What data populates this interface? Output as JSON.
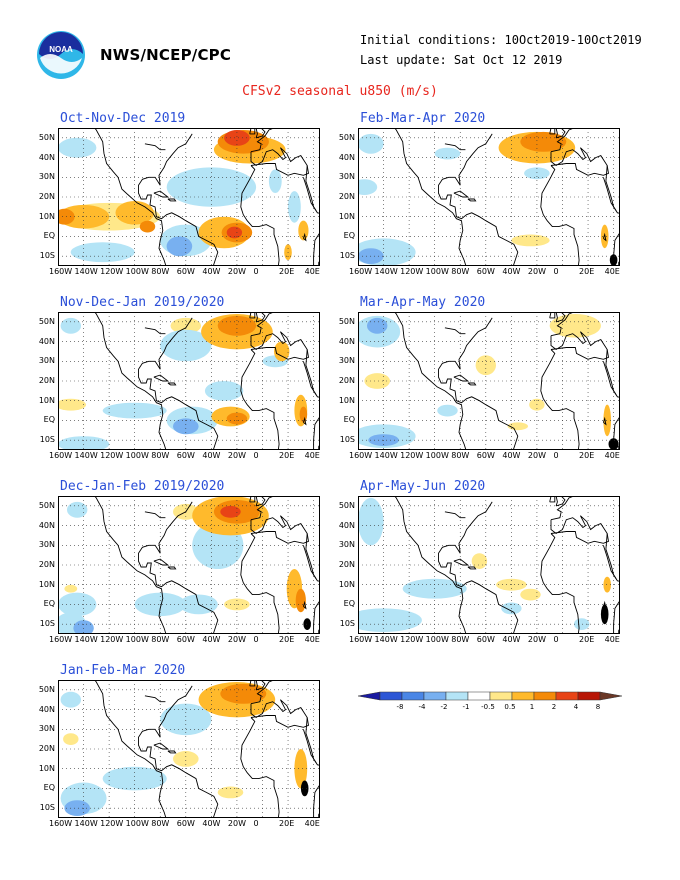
{
  "header": {
    "agency": "NWS/NCEP/CPC",
    "initial_conditions": "Initial conditions: 10Oct2019-10Oct2019",
    "last_update": "Last update: Sat Oct 12 2019",
    "title": "CFSv2 seasonal u850 (m/s)"
  },
  "logo": {
    "text": "NOAA"
  },
  "axes": {
    "lat_labels": [
      "50N",
      "40N",
      "30N",
      "20N",
      "10N",
      "EQ",
      "10S"
    ],
    "lon_labels": [
      "160W",
      "140W",
      "120W",
      "100W",
      "80W",
      "60W",
      "40W",
      "20W",
      "0",
      "20E",
      "40E"
    ]
  },
  "panels": [
    {
      "id": "ond",
      "title": "Oct-Nov-Dec 2019"
    },
    {
      "id": "fma",
      "title": "Feb-Mar-Apr 2020"
    },
    {
      "id": "ndj",
      "title": "Nov-Dec-Jan 2019/2020"
    },
    {
      "id": "mam",
      "title": "Mar-Apr-May 2020"
    },
    {
      "id": "djf",
      "title": "Dec-Jan-Feb 2019/2020"
    },
    {
      "id": "amj",
      "title": "Apr-May-Jun 2020"
    },
    {
      "id": "jfm",
      "title": "Jan-Feb-Mar 2020"
    }
  ],
  "colorbar": {
    "colors": [
      "#1a1aa0",
      "#2c56d6",
      "#4a86e6",
      "#78b0f0",
      "#b4e4f6",
      "#ffffff",
      "#ffe88a",
      "#ffba2c",
      "#f48a08",
      "#e84416",
      "#b81606",
      "#6a3826"
    ],
    "labels": [
      "-8",
      "-4",
      "-2",
      "-1",
      "-0.5",
      "0.5",
      "1",
      "2",
      "4",
      "8"
    ]
  }
}
